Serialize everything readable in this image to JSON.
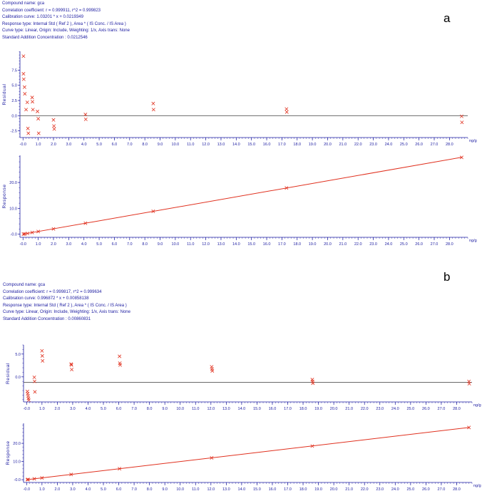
{
  "panels": [
    {
      "letter": "a",
      "info": [
        "Compound name: gca",
        "Correlation coefficient: r = 0.999911, r^2 = 0.999823",
        "Calibration curve: 1.03201 * x + 0.0219349",
        "Response type: Internal Std ( Ref 2 ), Area * ( IS Conc. / IS Area )",
        "Curve type: Linear, Origin: Include, Weighting: 1/x, Axis trans: None",
        "Standard Addition Concentration : 0.0212546"
      ]
    },
    {
      "letter": "b",
      "info": [
        "Compound name: gca",
        "Correlation coefficient: r = 0.999817, r^2 = 0.999634",
        "Calibration curve: 0.996872 * x + 0.00858138",
        "Response type: Internal Std ( Ref 2 ), Area * ( IS Conc. / IS Area )",
        "Curve type: Linear, Origin: Include, Weighting: 1/x, Axis trans: None",
        "Standard Addition Concentration : 0.00860831"
      ]
    }
  ],
  "chart_data": [
    {
      "type": "scatter",
      "panel": "a",
      "ylabel": "Residual",
      "xlabel": "ng/g",
      "ylim": [
        -3.6,
        10.6
      ],
      "xlim": [
        -0.2,
        29.2
      ],
      "yticks": [
        "7.5",
        "5.0",
        "2.5",
        "0.0",
        "-2.5"
      ],
      "ytick_values": [
        7.5,
        5.0,
        2.5,
        0.0,
        -2.5
      ],
      "xticks": [
        "-0.0",
        "1.0",
        "2.0",
        "3.0",
        "4.0",
        "5.0",
        "6.0",
        "7.0",
        "8.0",
        "9.0",
        "10.0",
        "11.0",
        "12.0",
        "13.0",
        "14.0",
        "15.0",
        "16.0",
        "17.0",
        "18.0",
        "19.0",
        "20.0",
        "21.0",
        "22.0",
        "23.0",
        "24.0",
        "25.0",
        "26.0",
        "27.0",
        "28.0"
      ],
      "xtick_values": [
        0,
        1,
        2,
        3,
        4,
        5,
        6,
        7,
        8,
        9,
        10,
        11,
        12,
        13,
        14,
        15,
        16,
        17,
        18,
        19,
        20,
        21,
        22,
        23,
        24,
        25,
        26,
        27,
        28
      ],
      "reference_line": 0,
      "color": "#e0301e",
      "points": [
        [
          0.03,
          9.8
        ],
        [
          0.03,
          6.9
        ],
        [
          0.05,
          6.0
        ],
        [
          0.1,
          4.7
        ],
        [
          0.12,
          3.6
        ],
        [
          0.2,
          1.0
        ],
        [
          0.28,
          2.2
        ],
        [
          0.32,
          -2.1
        ],
        [
          0.35,
          -2.9
        ],
        [
          0.6,
          3.0
        ],
        [
          0.62,
          2.3
        ],
        [
          0.65,
          1.0
        ],
        [
          0.95,
          0.7
        ],
        [
          1.0,
          -0.5
        ],
        [
          1.03,
          -2.9
        ],
        [
          2.0,
          -0.7
        ],
        [
          2.03,
          -1.7
        ],
        [
          2.05,
          -2.2
        ],
        [
          4.1,
          0.2
        ],
        [
          4.12,
          -0.6
        ],
        [
          8.55,
          2.0
        ],
        [
          8.57,
          1.0
        ],
        [
          17.3,
          1.1
        ],
        [
          17.32,
          0.6
        ],
        [
          28.8,
          -0.1
        ],
        [
          28.82,
          -1.1
        ]
      ]
    },
    {
      "type": "scatter",
      "panel": "a",
      "ylabel": "Response",
      "xlabel": "ng/g",
      "ylim": [
        -1.2,
        30.5
      ],
      "xlim": [
        -0.2,
        29.2
      ],
      "yticks": [
        "20.0",
        "10.0",
        "-0.0"
      ],
      "ytick_values": [
        20,
        10,
        0
      ],
      "xticks": [
        "-0.0",
        "1.0",
        "2.0",
        "3.0",
        "4.0",
        "5.0",
        "6.0",
        "7.0",
        "8.0",
        "9.0",
        "10.0",
        "11.0",
        "12.0",
        "13.0",
        "14.0",
        "15.0",
        "16.0",
        "17.0",
        "18.0",
        "19.0",
        "20.0",
        "21.0",
        "22.0",
        "23.0",
        "24.0",
        "25.0",
        "26.0",
        "27.0",
        "28.0"
      ],
      "xtick_values": [
        0,
        1,
        2,
        3,
        4,
        5,
        6,
        7,
        8,
        9,
        10,
        11,
        12,
        13,
        14,
        15,
        16,
        17,
        18,
        19,
        20,
        21,
        22,
        23,
        24,
        25,
        26,
        27,
        28
      ],
      "fit_line": {
        "slope": 1.03201,
        "intercept": 0.0219349
      },
      "color": "#e0301e",
      "points": [
        [
          0.03,
          0.05
        ],
        [
          0.1,
          0.12
        ],
        [
          0.3,
          0.3
        ],
        [
          0.6,
          0.65
        ],
        [
          1.0,
          1.05
        ],
        [
          2.0,
          2.05
        ],
        [
          4.1,
          4.25
        ],
        [
          8.55,
          8.85
        ],
        [
          17.3,
          17.9
        ],
        [
          28.8,
          29.7
        ]
      ]
    },
    {
      "type": "scatter",
      "panel": "b",
      "ylabel": "Residual",
      "xlabel": "ng/g",
      "ylim": [
        -5.5,
        7.0
      ],
      "xlim": [
        -0.2,
        29.0
      ],
      "yticks": [
        "5.0",
        "0.0"
      ],
      "ytick_values": [
        5.0,
        0.0
      ],
      "xticks": [
        "-0.0",
        "1.0",
        "2.0",
        "3.0",
        "4.0",
        "5.0",
        "6.0",
        "7.0",
        "8.0",
        "9.0",
        "10.0",
        "11.0",
        "12.0",
        "13.0",
        "14.0",
        "15.0",
        "16.0",
        "17.0",
        "18.0",
        "19.0",
        "20.0",
        "21.0",
        "22.0",
        "23.0",
        "24.0",
        "25.0",
        "26.0",
        "27.0",
        "28.0"
      ],
      "xtick_values": [
        0,
        1,
        2,
        3,
        4,
        5,
        6,
        7,
        8,
        9,
        10,
        11,
        12,
        13,
        14,
        15,
        16,
        17,
        18,
        19,
        20,
        21,
        22,
        23,
        24,
        25,
        26,
        27,
        28
      ],
      "reference_line": -1.2,
      "color": "#e0301e",
      "points": [
        [
          0.05,
          -3.2
        ],
        [
          0.07,
          -3.7
        ],
        [
          0.1,
          -4.2
        ],
        [
          0.12,
          -4.7
        ],
        [
          0.14,
          -5.1
        ],
        [
          0.5,
          -0.1
        ],
        [
          0.52,
          -1.0
        ],
        [
          0.54,
          -3.3
        ],
        [
          1.0,
          5.7
        ],
        [
          1.02,
          4.6
        ],
        [
          1.04,
          3.5
        ],
        [
          2.9,
          2.8
        ],
        [
          2.92,
          2.6
        ],
        [
          2.94,
          1.6
        ],
        [
          6.05,
          4.5
        ],
        [
          6.07,
          3.0
        ],
        [
          6.09,
          2.6
        ],
        [
          12.05,
          2.2
        ],
        [
          12.07,
          1.7
        ],
        [
          12.09,
          1.3
        ],
        [
          18.6,
          -0.6
        ],
        [
          18.62,
          -1.0
        ],
        [
          18.64,
          -1.4
        ],
        [
          28.8,
          -1.0
        ],
        [
          28.82,
          -1.5
        ]
      ]
    },
    {
      "type": "scatter",
      "panel": "b",
      "ylabel": "Response",
      "xlabel": "ng/g",
      "ylim": [
        -1.5,
        31.0
      ],
      "xlim": [
        -0.2,
        29.0
      ],
      "yticks": [
        "20.0",
        "10.0",
        "-0.0"
      ],
      "ytick_values": [
        20,
        10,
        0
      ],
      "xticks": [
        "-0.0",
        "1.0",
        "2.0",
        "3.0",
        "4.0",
        "5.0",
        "6.0",
        "7.0",
        "8.0",
        "9.0",
        "10.0",
        "11.0",
        "12.0",
        "13.0",
        "14.0",
        "15.0",
        "16.0",
        "17.0",
        "18.0",
        "19.0",
        "20.0",
        "21.0",
        "22.0",
        "23.0",
        "24.0",
        "25.0",
        "26.0",
        "27.0",
        "28.0"
      ],
      "xtick_values": [
        0,
        1,
        2,
        3,
        4,
        5,
        6,
        7,
        8,
        9,
        10,
        11,
        12,
        13,
        14,
        15,
        16,
        17,
        18,
        19,
        20,
        21,
        22,
        23,
        24,
        25,
        26,
        27,
        28
      ],
      "fit_line": {
        "slope": 0.996872,
        "intercept": 0.00858138
      },
      "color": "#e0301e",
      "points": [
        [
          0.05,
          0.05
        ],
        [
          0.1,
          0.1
        ],
        [
          0.5,
          0.5
        ],
        [
          1.0,
          1.0
        ],
        [
          2.9,
          2.9
        ],
        [
          6.05,
          6.05
        ],
        [
          12.05,
          12.0
        ],
        [
          18.6,
          18.5
        ],
        [
          28.8,
          28.7
        ]
      ]
    }
  ]
}
